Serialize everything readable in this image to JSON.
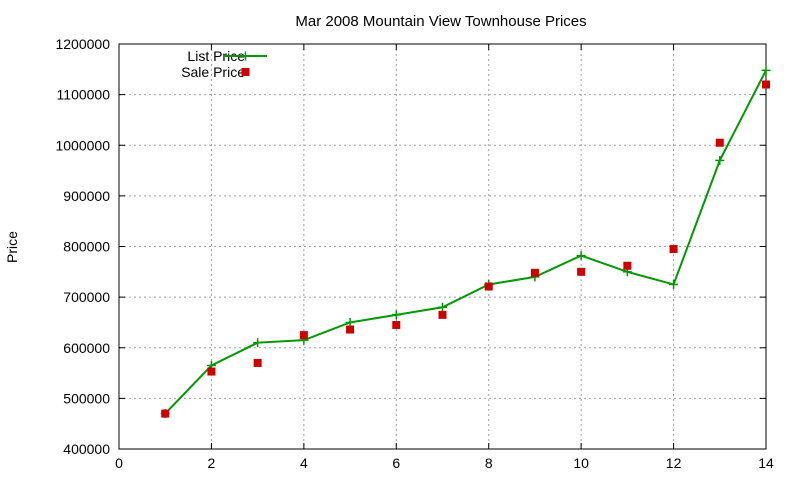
{
  "chart_data": {
    "type": "line",
    "title": "Mar 2008 Mountain View Townhouse Prices",
    "xlabel": "",
    "ylabel": "Price",
    "xlim": [
      0,
      14
    ],
    "ylim": [
      400000,
      1200000
    ],
    "xticks": [
      0,
      2,
      4,
      6,
      8,
      10,
      12,
      14
    ],
    "yticks": [
      400000,
      500000,
      600000,
      700000,
      800000,
      900000,
      1000000,
      1100000,
      1200000
    ],
    "grid": true,
    "legend_position": "top-left",
    "series": [
      {
        "name": "List Price",
        "style": "line-with-plus-markers",
        "color": "#009900",
        "x": [
          1,
          2,
          3,
          4,
          5,
          6,
          7,
          8,
          9,
          10,
          11,
          12,
          13,
          14
        ],
        "y": [
          470000,
          565000,
          610000,
          615000,
          650000,
          665000,
          680000,
          725000,
          740000,
          782000,
          750000,
          725000,
          970000,
          1148000
        ]
      },
      {
        "name": "Sale Price",
        "style": "square-markers",
        "color": "#cc0000",
        "x": [
          1,
          2,
          3,
          4,
          5,
          6,
          7,
          8,
          9,
          10,
          11,
          12,
          13,
          14
        ],
        "y": [
          470000,
          553000,
          570000,
          625000,
          636000,
          645000,
          665000,
          721000,
          748000,
          750000,
          762000,
          795000,
          1005000,
          1120000
        ]
      }
    ]
  }
}
